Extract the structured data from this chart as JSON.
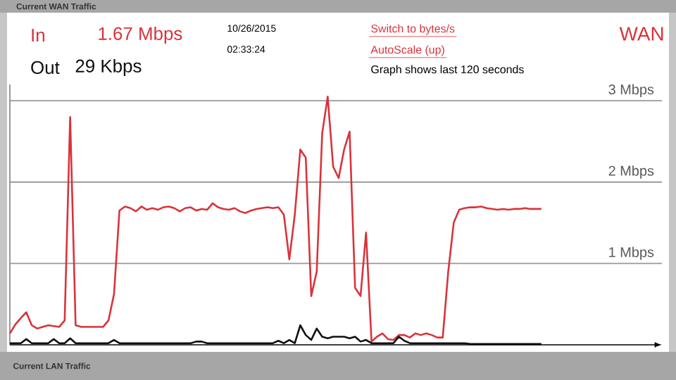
{
  "chart_data": {
    "type": "line",
    "title": "Current WAN Traffic",
    "categories": [
      null,
      null,
      null,
      null,
      null,
      null,
      null,
      null,
      null,
      null,
      null,
      null,
      null,
      null,
      null,
      null,
      null,
      null,
      null,
      null,
      null,
      null,
      null,
      null,
      null,
      null,
      null,
      null,
      null,
      null,
      null,
      null,
      null,
      null,
      null,
      null,
      null,
      null,
      null,
      null,
      null,
      null,
      null,
      null,
      null,
      null,
      null,
      null,
      null,
      null,
      null,
      null,
      null,
      null,
      null,
      null,
      null,
      null,
      null,
      null,
      null,
      null,
      null,
      null,
      null,
      null,
      null,
      null,
      null,
      null,
      null,
      null,
      null,
      null,
      null,
      null,
      null,
      null,
      null,
      null,
      null,
      null,
      null,
      null,
      null,
      null,
      null,
      null,
      null,
      null,
      null,
      null,
      null,
      null,
      null,
      null,
      null,
      null,
      null,
      null,
      null,
      null,
      null,
      null,
      null,
      null,
      null,
      null,
      null,
      null,
      null,
      null,
      null,
      null,
      null,
      null,
      null,
      null,
      null,
      null
    ],
    "series": [
      {
        "name": "In",
        "color": "#d9333a",
        "values": [
          0.14,
          0.25,
          0.33,
          0.4,
          0.24,
          0.2,
          0.22,
          0.24,
          0.23,
          0.22,
          0.3,
          2.8,
          0.24,
          0.22,
          0.22,
          0.22,
          0.22,
          0.22,
          0.3,
          0.62,
          1.65,
          1.7,
          1.68,
          1.64,
          1.7,
          1.66,
          1.68,
          1.66,
          1.69,
          1.7,
          1.68,
          1.64,
          1.68,
          1.69,
          1.65,
          1.67,
          1.66,
          1.74,
          1.69,
          1.67,
          1.66,
          1.68,
          1.64,
          1.62,
          1.65,
          1.67,
          1.68,
          1.69,
          1.68,
          1.69,
          1.6,
          1.05,
          1.6,
          2.4,
          2.3,
          0.6,
          0.9,
          2.6,
          3.05,
          2.19,
          2.05,
          2.4,
          2.62,
          0.7,
          0.6,
          1.38,
          0.04,
          0.1,
          0.14,
          0.07,
          0.06,
          0.12,
          0.12,
          0.09,
          0.14,
          0.12,
          0.14,
          0.12,
          0.09,
          0.09,
          0.9,
          1.5,
          1.66,
          1.68,
          1.69,
          1.69,
          1.7,
          1.68,
          1.67,
          1.66,
          1.67,
          1.66,
          1.67,
          1.67,
          1.68,
          1.67,
          1.67,
          1.67,
          null,
          null,
          null,
          null,
          null,
          null,
          null,
          null,
          null,
          null,
          null,
          null,
          null,
          null,
          null,
          null,
          null,
          null,
          null,
          null,
          null,
          null
        ]
      },
      {
        "name": "Out",
        "color": "#111111",
        "values": [
          0.02,
          0.02,
          0.02,
          0.07,
          0.02,
          0.02,
          0.02,
          0.02,
          0.07,
          0.02,
          0.02,
          0.08,
          0.02,
          0.02,
          0.02,
          0.02,
          0.02,
          0.02,
          0.02,
          0.06,
          0.02,
          0.02,
          0.02,
          0.02,
          0.02,
          0.02,
          0.02,
          0.02,
          0.02,
          0.02,
          0.02,
          0.02,
          0.02,
          0.02,
          0.04,
          0.04,
          0.02,
          0.02,
          0.02,
          0.02,
          0.02,
          0.02,
          0.02,
          0.02,
          0.02,
          0.02,
          0.02,
          0.02,
          0.02,
          0.05,
          0.02,
          0.06,
          0.02,
          0.24,
          0.12,
          0.06,
          0.2,
          0.1,
          0.08,
          0.1,
          0.1,
          0.1,
          0.08,
          0.1,
          0.04,
          0.06,
          0.02,
          0.02,
          0.02,
          0.02,
          0.02,
          0.1,
          0.05,
          0.02,
          0.02,
          0.02,
          0.02,
          0.02,
          0.02,
          0.02,
          0.02,
          0.02,
          0.02,
          0.02,
          0.01,
          0.01,
          0.01,
          0.01,
          0.01,
          0.01,
          0.01,
          0.01,
          0.01,
          0.01,
          0.01,
          0.01,
          0.01,
          0.01,
          null,
          null,
          null,
          null,
          null,
          null,
          null,
          null,
          null,
          null,
          null,
          null,
          null,
          null,
          null,
          null,
          null,
          null,
          null,
          null,
          null,
          null
        ]
      }
    ],
    "ylim": [
      0,
      3.2
    ],
    "yticks": [
      {
        "value": 1,
        "label": "1 Mbps"
      },
      {
        "value": 2,
        "label": "2 Mbps"
      },
      {
        "value": 3,
        "label": "3 Mbps"
      }
    ],
    "grid": "y",
    "tick_labels": "y",
    "line_style": "solid",
    "marker": "none",
    "annotations": [
      "1.67 Mbps",
      "29 Kbps",
      "10/26/2015",
      "02:33:24",
      "Switch to bytes/s",
      "AutoScale (up)",
      "Graph shows last 120 seconds",
      "WAN",
      "Current LAN Traffic"
    ]
  }
}
